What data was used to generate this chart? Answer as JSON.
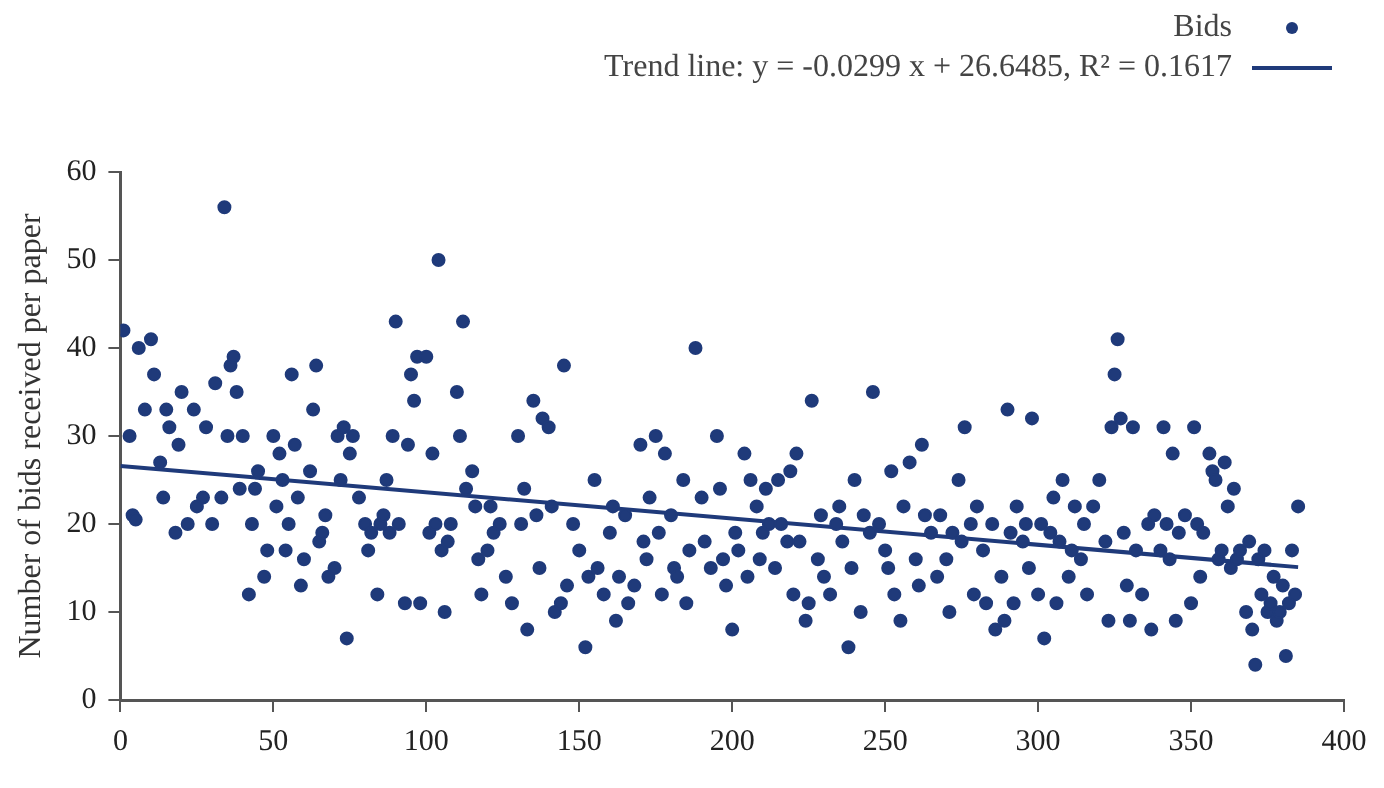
{
  "chart_data": {
    "type": "scatter",
    "ylabel": "Number of bids received per paper",
    "legend": "top right",
    "marker": "circle",
    "grid": false,
    "xlim": [
      0,
      400
    ],
    "xticks": [
      0,
      50,
      100,
      150,
      200,
      250,
      300,
      350,
      400
    ],
    "ylim": [
      0,
      60
    ],
    "yticks": [
      0,
      10,
      20,
      30,
      40,
      50,
      60
    ],
    "series": [
      {
        "name": "Bids",
        "color": "#1f3a7a",
        "x": [
          1,
          3,
          4,
          5,
          6,
          8,
          10,
          11,
          13,
          14,
          15,
          16,
          18,
          19,
          20,
          22,
          24,
          25,
          27,
          28,
          30,
          31,
          33,
          34,
          35,
          36,
          37,
          38,
          39,
          40,
          42,
          43,
          44,
          45,
          47,
          48,
          50,
          51,
          52,
          53,
          54,
          55,
          56,
          57,
          58,
          59,
          60,
          62,
          63,
          64,
          65,
          66,
          67,
          68,
          70,
          71,
          72,
          73,
          74,
          75,
          76,
          78,
          80,
          81,
          82,
          84,
          85,
          86,
          87,
          88,
          89,
          90,
          91,
          93,
          94,
          95,
          96,
          97,
          98,
          100,
          101,
          102,
          103,
          104,
          105,
          106,
          107,
          108,
          110,
          111,
          112,
          113,
          115,
          116,
          117,
          118,
          120,
          121,
          122,
          124,
          126,
          128,
          130,
          131,
          132,
          133,
          135,
          136,
          137,
          138,
          140,
          141,
          142,
          144,
          145,
          146,
          148,
          150,
          152,
          153,
          155,
          156,
          158,
          160,
          161,
          162,
          163,
          165,
          166,
          168,
          170,
          171,
          172,
          173,
          175,
          176,
          177,
          178,
          180,
          181,
          182,
          184,
          185,
          186,
          188,
          190,
          191,
          193,
          195,
          196,
          197,
          198,
          200,
          201,
          202,
          204,
          205,
          206,
          208,
          209,
          210,
          211,
          212,
          214,
          215,
          216,
          218,
          219,
          220,
          221,
          222,
          224,
          225,
          226,
          228,
          229,
          230,
          232,
          234,
          235,
          236,
          238,
          239,
          240,
          242,
          243,
          245,
          246,
          248,
          250,
          251,
          252,
          253,
          255,
          256,
          258,
          260,
          261,
          262,
          263,
          265,
          267,
          268,
          270,
          271,
          272,
          274,
          275,
          276,
          278,
          279,
          280,
          282,
          283,
          285,
          286,
          288,
          289,
          290,
          291,
          292,
          293,
          295,
          296,
          297,
          298,
          300,
          301,
          302,
          304,
          305,
          306,
          307,
          308,
          310,
          311,
          312,
          314,
          315,
          316,
          318,
          320,
          322,
          323,
          324,
          325,
          326,
          327,
          328,
          329,
          330,
          331,
          332,
          334,
          336,
          337,
          338,
          340,
          341,
          342,
          343,
          344,
          345,
          346,
          348,
          350,
          351,
          352,
          353,
          354,
          356,
          357,
          358,
          359,
          360,
          361,
          362,
          363,
          364,
          365,
          366,
          368,
          369,
          370,
          371,
          372,
          373,
          374,
          375,
          376,
          377,
          378,
          379,
          380,
          381,
          382,
          383,
          384,
          385
        ],
        "values": [
          42,
          30,
          21,
          20.5,
          40,
          33,
          41,
          37,
          27,
          23,
          33,
          31,
          19,
          29,
          35,
          20,
          33,
          22,
          23,
          31,
          20,
          36,
          23,
          56,
          30,
          38,
          39,
          35,
          24,
          30,
          12,
          20,
          24,
          26,
          14,
          17,
          30,
          22,
          28,
          25,
          17,
          20,
          37,
          29,
          23,
          13,
          16,
          26,
          33,
          38,
          18,
          19,
          21,
          14,
          15,
          30,
          25,
          31,
          7,
          28,
          30,
          23,
          20,
          17,
          19,
          12,
          20,
          21,
          25,
          19,
          30,
          43,
          20,
          11,
          29,
          37,
          34,
          39,
          11,
          39,
          19,
          28,
          20,
          50,
          17,
          10,
          18,
          20,
          35,
          30,
          43,
          24,
          26,
          22,
          16,
          12,
          17,
          22,
          19,
          20,
          14,
          11,
          30,
          20,
          24,
          8,
          34,
          21,
          15,
          32,
          31,
          22,
          10,
          11,
          38,
          13,
          20,
          17,
          6,
          14,
          25,
          15,
          12,
          19,
          22,
          9,
          14,
          21,
          11,
          13,
          29,
          18,
          16,
          23,
          30,
          19,
          12,
          28,
          21,
          15,
          14,
          25,
          11,
          17,
          40,
          23,
          18,
          15,
          30,
          24,
          16,
          13,
          8,
          19,
          17,
          28,
          14,
          25,
          22,
          16,
          19,
          24,
          20,
          15,
          25,
          20,
          18,
          26,
          12,
          28,
          18,
          9,
          11,
          34,
          16,
          21,
          14,
          12,
          20,
          22,
          18,
          6,
          15,
          25,
          10,
          21,
          19,
          35,
          20,
          17,
          15,
          26,
          12,
          9,
          22,
          27,
          16,
          13,
          29,
          21,
          19,
          14,
          21,
          16,
          10,
          19,
          25,
          18,
          31,
          20,
          12,
          22,
          17,
          11,
          20,
          8,
          14,
          9,
          33,
          19,
          11,
          22,
          18,
          20,
          15,
          32,
          12,
          20,
          7,
          19,
          23,
          11,
          18,
          25,
          14,
          17,
          22,
          16,
          20,
          12,
          22,
          25,
          18,
          9,
          31,
          37,
          41,
          32,
          19,
          13,
          9,
          31,
          17,
          12,
          20,
          8,
          21,
          17,
          31,
          20,
          16,
          28,
          9,
          19,
          21,
          11,
          31,
          20,
          14,
          19,
          28,
          26,
          25,
          16,
          17,
          27,
          22,
          15,
          24,
          16,
          17,
          10,
          18,
          8,
          4,
          16,
          12,
          17,
          10,
          11,
          14,
          9,
          10,
          13,
          5,
          11,
          17,
          12,
          22
        ]
      },
      {
        "name": "Trend line: y = -0.0299 x + 26.6485, R² = 0.1617",
        "type": "line",
        "color": "#1f3a7a",
        "marker": "none",
        "line_style": "solid",
        "x": [
          0,
          385
        ],
        "values": [
          26.6,
          15.1
        ]
      }
    ]
  }
}
